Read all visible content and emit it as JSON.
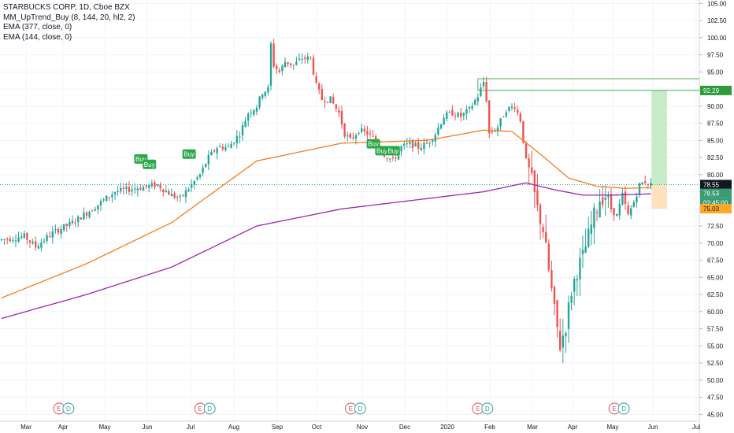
{
  "legend": {
    "title": "STARBUCKS CORP, 1D, Cboe BZX",
    "indicator_1": "MM_UpTrend_Buy (8, 144, 20, hl2, 2)",
    "indicator_2": "EMA (377, close, 0)",
    "indicator_3": "EMA (144, close, 0)"
  },
  "price_tags": {
    "target": "92.29",
    "current": "78.55",
    "last": "78.53",
    "countdown": "02:45:00",
    "stop": "75.03"
  },
  "colors": {
    "up": "#26a69a",
    "down": "#ef5350",
    "ema144": "#f57c1f",
    "ema377": "#9c27b0",
    "buy": "#2fa64a",
    "target_zone": "#c8ebc8",
    "stop_zone": "#ffe2bd",
    "earnings": "#e04e5c",
    "dividend": "#26a69a"
  },
  "chart_data": {
    "type": "candlestick",
    "title": "STARBUCKS CORP, 1D, Cboe BZX",
    "ylim": [
      44.0,
      105.5
    ],
    "y_ticks": [
      "45.00",
      "47.50",
      "50.00",
      "52.50",
      "55.00",
      "57.50",
      "60.00",
      "62.50",
      "65.00",
      "67.50",
      "70.00",
      "72.50",
      "75.00",
      "77.50",
      "80.00",
      "82.50",
      "85.00",
      "87.50",
      "90.00",
      "92.50",
      "95.00",
      "97.50",
      "100.00",
      "102.50",
      "105.00"
    ],
    "x_ticks": [
      "Mar",
      "Apr",
      "May",
      "Jun",
      "Jul",
      "Aug",
      "Sep",
      "Oct",
      "Nov",
      "Dec",
      "2020",
      "Feb",
      "Mar",
      "Apr",
      "May",
      "Jun",
      "Jul"
    ],
    "price_anchors": [
      [
        0,
        70.5
      ],
      [
        8,
        71
      ],
      [
        12,
        69.5
      ],
      [
        18,
        71.5
      ],
      [
        25,
        73
      ],
      [
        32,
        75
      ],
      [
        40,
        77.5
      ],
      [
        47,
        78
      ],
      [
        55,
        78.5
      ],
      [
        60,
        77
      ],
      [
        63,
        76.5
      ],
      [
        67,
        78.5
      ],
      [
        70,
        80
      ],
      [
        73,
        82.5
      ],
      [
        76,
        84
      ],
      [
        80,
        84
      ],
      [
        84,
        86
      ],
      [
        87,
        89
      ],
      [
        90,
        90
      ],
      [
        92,
        92
      ],
      [
        94,
        92.5
      ],
      [
        95,
        99
      ],
      [
        96,
        96
      ],
      [
        98,
        95
      ],
      [
        100,
        96.5
      ],
      [
        103,
        96
      ],
      [
        106,
        97
      ],
      [
        109,
        97
      ],
      [
        111,
        93
      ],
      [
        113,
        91
      ],
      [
        116,
        91
      ],
      [
        119,
        89
      ],
      [
        121,
        86
      ],
      [
        123,
        85
      ],
      [
        126,
        86.5
      ],
      [
        129,
        86
      ],
      [
        132,
        85
      ],
      [
        135,
        83
      ],
      [
        138,
        82
      ],
      [
        141,
        84
      ],
      [
        144,
        84.5
      ],
      [
        147,
        84
      ],
      [
        150,
        84.5
      ],
      [
        153,
        86
      ],
      [
        156,
        88.5
      ],
      [
        159,
        89
      ],
      [
        162,
        88.5
      ],
      [
        165,
        89.5
      ],
      [
        168,
        91.5
      ],
      [
        170,
        93.5
      ],
      [
        171,
        91
      ],
      [
        172,
        86
      ],
      [
        175,
        87
      ],
      [
        178,
        89.5
      ],
      [
        181,
        90
      ],
      [
        183,
        88
      ],
      [
        185,
        82
      ],
      [
        187,
        79
      ],
      [
        189,
        75
      ],
      [
        191,
        72
      ],
      [
        193,
        66
      ],
      [
        195,
        60
      ],
      [
        197,
        55
      ],
      [
        199,
        58
      ],
      [
        201,
        63
      ],
      [
        203,
        66
      ],
      [
        205,
        68
      ],
      [
        207,
        71
      ],
      [
        209,
        74
      ],
      [
        211,
        76.5
      ],
      [
        213,
        77
      ],
      [
        215,
        75
      ],
      [
        217,
        74
      ],
      [
        219,
        77
      ],
      [
        221,
        74
      ],
      [
        223,
        76
      ],
      [
        225,
        78.5
      ],
      [
        227,
        79
      ],
      [
        229,
        78.5
      ]
    ],
    "ema_144_anchors": [
      [
        0,
        62
      ],
      [
        30,
        67
      ],
      [
        60,
        73
      ],
      [
        90,
        82
      ],
      [
        120,
        84.6
      ],
      [
        150,
        85
      ],
      [
        170,
        86.5
      ],
      [
        180,
        86.3
      ],
      [
        190,
        83
      ],
      [
        200,
        79.5
      ],
      [
        210,
        78.3
      ],
      [
        220,
        78
      ],
      [
        229,
        78.1
      ]
    ],
    "ema_377_anchors": [
      [
        0,
        59
      ],
      [
        30,
        62.5
      ],
      [
        60,
        66.5
      ],
      [
        90,
        72.5
      ],
      [
        120,
        75
      ],
      [
        150,
        76.5
      ],
      [
        170,
        77.5
      ],
      [
        185,
        78.8
      ],
      [
        195,
        77.8
      ],
      [
        205,
        77
      ],
      [
        215,
        77
      ],
      [
        229,
        77.2
      ]
    ],
    "buy_signals": [
      [
        49,
        "Buy",
        82.3
      ],
      [
        52,
        "Buy",
        81.5
      ],
      [
        66,
        "Buy",
        83
      ],
      [
        131,
        "Buy",
        84.5
      ],
      [
        134,
        "Buy",
        83.5
      ],
      [
        138,
        "Buy",
        83.5
      ]
    ],
    "events": [
      [
        11,
        "E"
      ],
      [
        13,
        "D"
      ],
      [
        41,
        "E"
      ],
      [
        43,
        "D"
      ],
      [
        73,
        "E"
      ],
      [
        75,
        "D"
      ],
      [
        100,
        "E"
      ],
      [
        102,
        "D"
      ],
      [
        129,
        "E"
      ],
      [
        131,
        "D"
      ]
    ],
    "levels": {
      "resistance_top": 94.0,
      "resistance_mid": 92.29,
      "current": 78.55,
      "last": 78.53,
      "stop": 75.03
    }
  }
}
